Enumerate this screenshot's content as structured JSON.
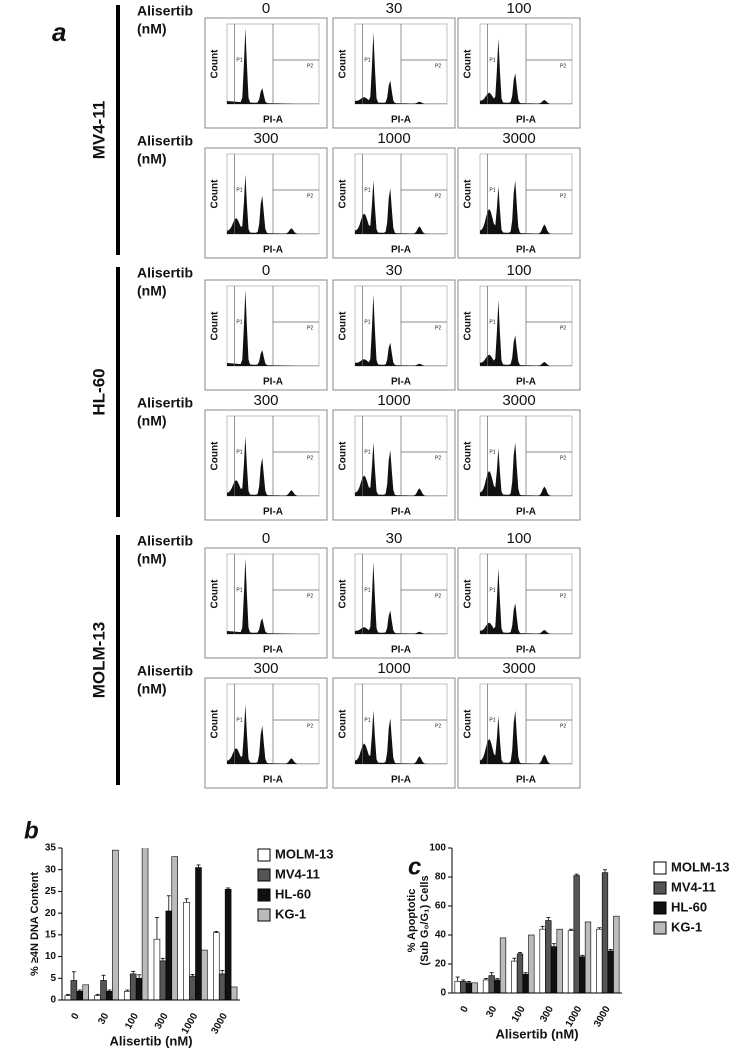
{
  "panel_a": {
    "label": "a",
    "row_label": [
      "Alisertib",
      "(nM)"
    ],
    "axis_y": "Count",
    "axis_x": "PI-A",
    "gates": [
      "P1",
      "P2"
    ],
    "groups": [
      {
        "name": "MV4-11",
        "doses": [
          [
            "0",
            "30",
            "100"
          ],
          [
            "300",
            "1000",
            "3000"
          ]
        ]
      },
      {
        "name": "HL-60",
        "doses": [
          [
            "0",
            "30",
            "100"
          ],
          [
            "300",
            "1000",
            "3000"
          ]
        ]
      },
      {
        "name": "MOLM-13",
        "doses": [
          [
            "0",
            "30",
            "100"
          ],
          [
            "300",
            "1000",
            "3000"
          ]
        ]
      }
    ]
  },
  "chart_data": [
    {
      "type": "bar",
      "label": "b",
      "ylabel": [
        "% ≥4N DNA Content"
      ],
      "xlabel": "Alisertib (nM)",
      "categories": [
        "0",
        "30",
        "100",
        "300",
        "1000",
        "3000"
      ],
      "ylim": [
        0,
        35
      ],
      "yticks": [
        0,
        5,
        10,
        15,
        20,
        25,
        30,
        35
      ],
      "series": [
        {
          "name": "MOLM-13",
          "color": "#ffffff",
          "values": [
            1,
            1,
            2,
            14,
            22.5,
            15.5
          ],
          "errors": [
            0.3,
            0.3,
            0.3,
            5,
            0.8,
            0.3
          ]
        },
        {
          "name": "MV4-11",
          "color": "#555555",
          "values": [
            4.5,
            4.5,
            6,
            9,
            5.5,
            6
          ],
          "errors": [
            2,
            1.2,
            0.6,
            0.6,
            0.4,
            0.8
          ]
        },
        {
          "name": "HL-60",
          "color": "#111111",
          "values": [
            2,
            2,
            5,
            20.5,
            30.5,
            25.5
          ],
          "errors": [
            0.3,
            0.3,
            0.8,
            3.5,
            0.6,
            0.3
          ]
        },
        {
          "name": "KG-1",
          "color": "#bbbbbb",
          "values": [
            3.5,
            34.5,
            36,
            33,
            11.5,
            3
          ],
          "errors": [
            0,
            0,
            0,
            0,
            0,
            0
          ]
        }
      ]
    },
    {
      "type": "bar",
      "label": "c",
      "ylabel": [
        "% Apoptotic",
        "(Sub G₀/G₁) Cells"
      ],
      "xlabel": "Alisertib (nM)",
      "categories": [
        "0",
        "30",
        "100",
        "300",
        "1000",
        "3000"
      ],
      "ylim": [
        0,
        100
      ],
      "yticks": [
        0,
        20,
        40,
        60,
        80,
        100
      ],
      "series": [
        {
          "name": "MOLM-13",
          "color": "#ffffff",
          "values": [
            8,
            9,
            22,
            44,
            43,
            44
          ],
          "errors": [
            3,
            1,
            2,
            2,
            1,
            1
          ]
        },
        {
          "name": "MV4-11",
          "color": "#555555",
          "values": [
            8,
            12,
            27,
            50,
            81,
            83
          ],
          "errors": [
            1,
            2,
            1,
            2,
            1,
            2
          ]
        },
        {
          "name": "HL-60",
          "color": "#111111",
          "values": [
            7,
            9,
            13,
            32,
            25,
            29
          ],
          "errors": [
            1,
            1,
            1,
            2,
            1,
            1
          ]
        },
        {
          "name": "KG-1",
          "color": "#bbbbbb",
          "values": [
            7,
            38,
            40,
            44,
            49,
            53
          ],
          "errors": [
            0,
            0,
            0,
            0,
            0,
            0
          ]
        }
      ]
    }
  ]
}
